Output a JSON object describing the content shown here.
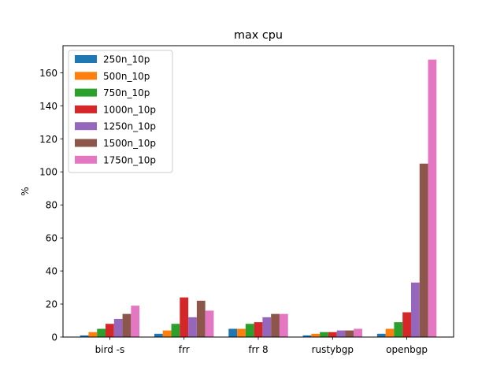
{
  "chart_data": {
    "type": "bar",
    "title": "max cpu",
    "xlabel": "",
    "ylabel": "%",
    "categories": [
      "bird -s",
      "frr",
      "frr 8",
      "rustybgp",
      "openbgp"
    ],
    "ylim": [
      0,
      176.4
    ],
    "yticks": [
      0,
      20,
      40,
      60,
      80,
      100,
      120,
      140,
      160
    ],
    "grid": false,
    "legend_position": "upper-left",
    "series": [
      {
        "name": "250n_10p",
        "color": "#1f77b4",
        "values": [
          1,
          2,
          5,
          1,
          2
        ]
      },
      {
        "name": "500n_10p",
        "color": "#ff7f0e",
        "values": [
          3,
          4,
          5,
          2,
          5
        ]
      },
      {
        "name": "750n_10p",
        "color": "#2ca02c",
        "values": [
          5,
          8,
          8,
          3,
          9
        ]
      },
      {
        "name": "1000n_10p",
        "color": "#d62728",
        "values": [
          8,
          24,
          9,
          3,
          15
        ]
      },
      {
        "name": "1250n_10p",
        "color": "#9467bd",
        "values": [
          11,
          12,
          12,
          4,
          33
        ]
      },
      {
        "name": "1500n_10p",
        "color": "#8c564b",
        "values": [
          14,
          22,
          14,
          4,
          105
        ]
      },
      {
        "name": "1750n_10p",
        "color": "#e377c2",
        "values": [
          19,
          16,
          14,
          5,
          168
        ]
      }
    ]
  }
}
